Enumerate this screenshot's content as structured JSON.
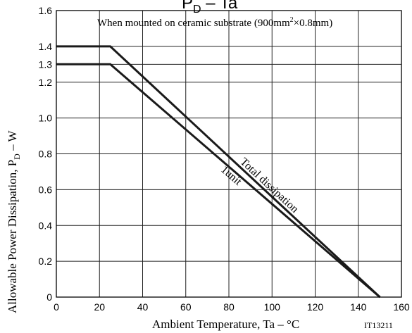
{
  "chart_data": {
    "type": "line",
    "title": "PD – Ta",
    "title_main": "P",
    "title_sub": "D",
    "title_rest": " – Ta",
    "condition": {
      "prefix": "When mounted on ceramic substrate (900mm",
      "sup": "2",
      "suffix": "×0.8mm)"
    },
    "xlabel": "Ambient Temperature, Ta  –  °C",
    "ylabel": {
      "prefix": "Allowable Power Dissipation, P",
      "sub": "D",
      "suffix": "  –  W"
    },
    "code": "IT13211",
    "xlim": [
      0,
      160
    ],
    "ylim": [
      0,
      1.6
    ],
    "x_ticks": [
      0,
      20,
      40,
      60,
      80,
      100,
      120,
      140,
      160
    ],
    "x_tick_labels": [
      "0",
      "20",
      "40",
      "60",
      "80",
      "100",
      "120",
      "140",
      "160"
    ],
    "y_ticks": [
      0,
      0.2,
      0.4,
      0.6,
      0.8,
      1.0,
      1.2,
      1.3,
      1.4,
      1.6
    ],
    "y_tick_labels": [
      "0",
      "0.2",
      "0.4",
      "0.6",
      "0.8",
      "1.0",
      "1.2",
      "1.3",
      "1.4",
      "1.6"
    ],
    "grid": true,
    "series": [
      {
        "name": "Total dissipation",
        "x": [
          0,
          25,
          150
        ],
        "y": [
          1.4,
          1.4,
          0
        ]
      },
      {
        "name": "1unit",
        "x": [
          0,
          25,
          150
        ],
        "y": [
          1.3,
          1.3,
          0
        ]
      }
    ],
    "colors": {
      "line": "#1a1a1a",
      "grid": "#222222",
      "text": "#000000"
    }
  }
}
